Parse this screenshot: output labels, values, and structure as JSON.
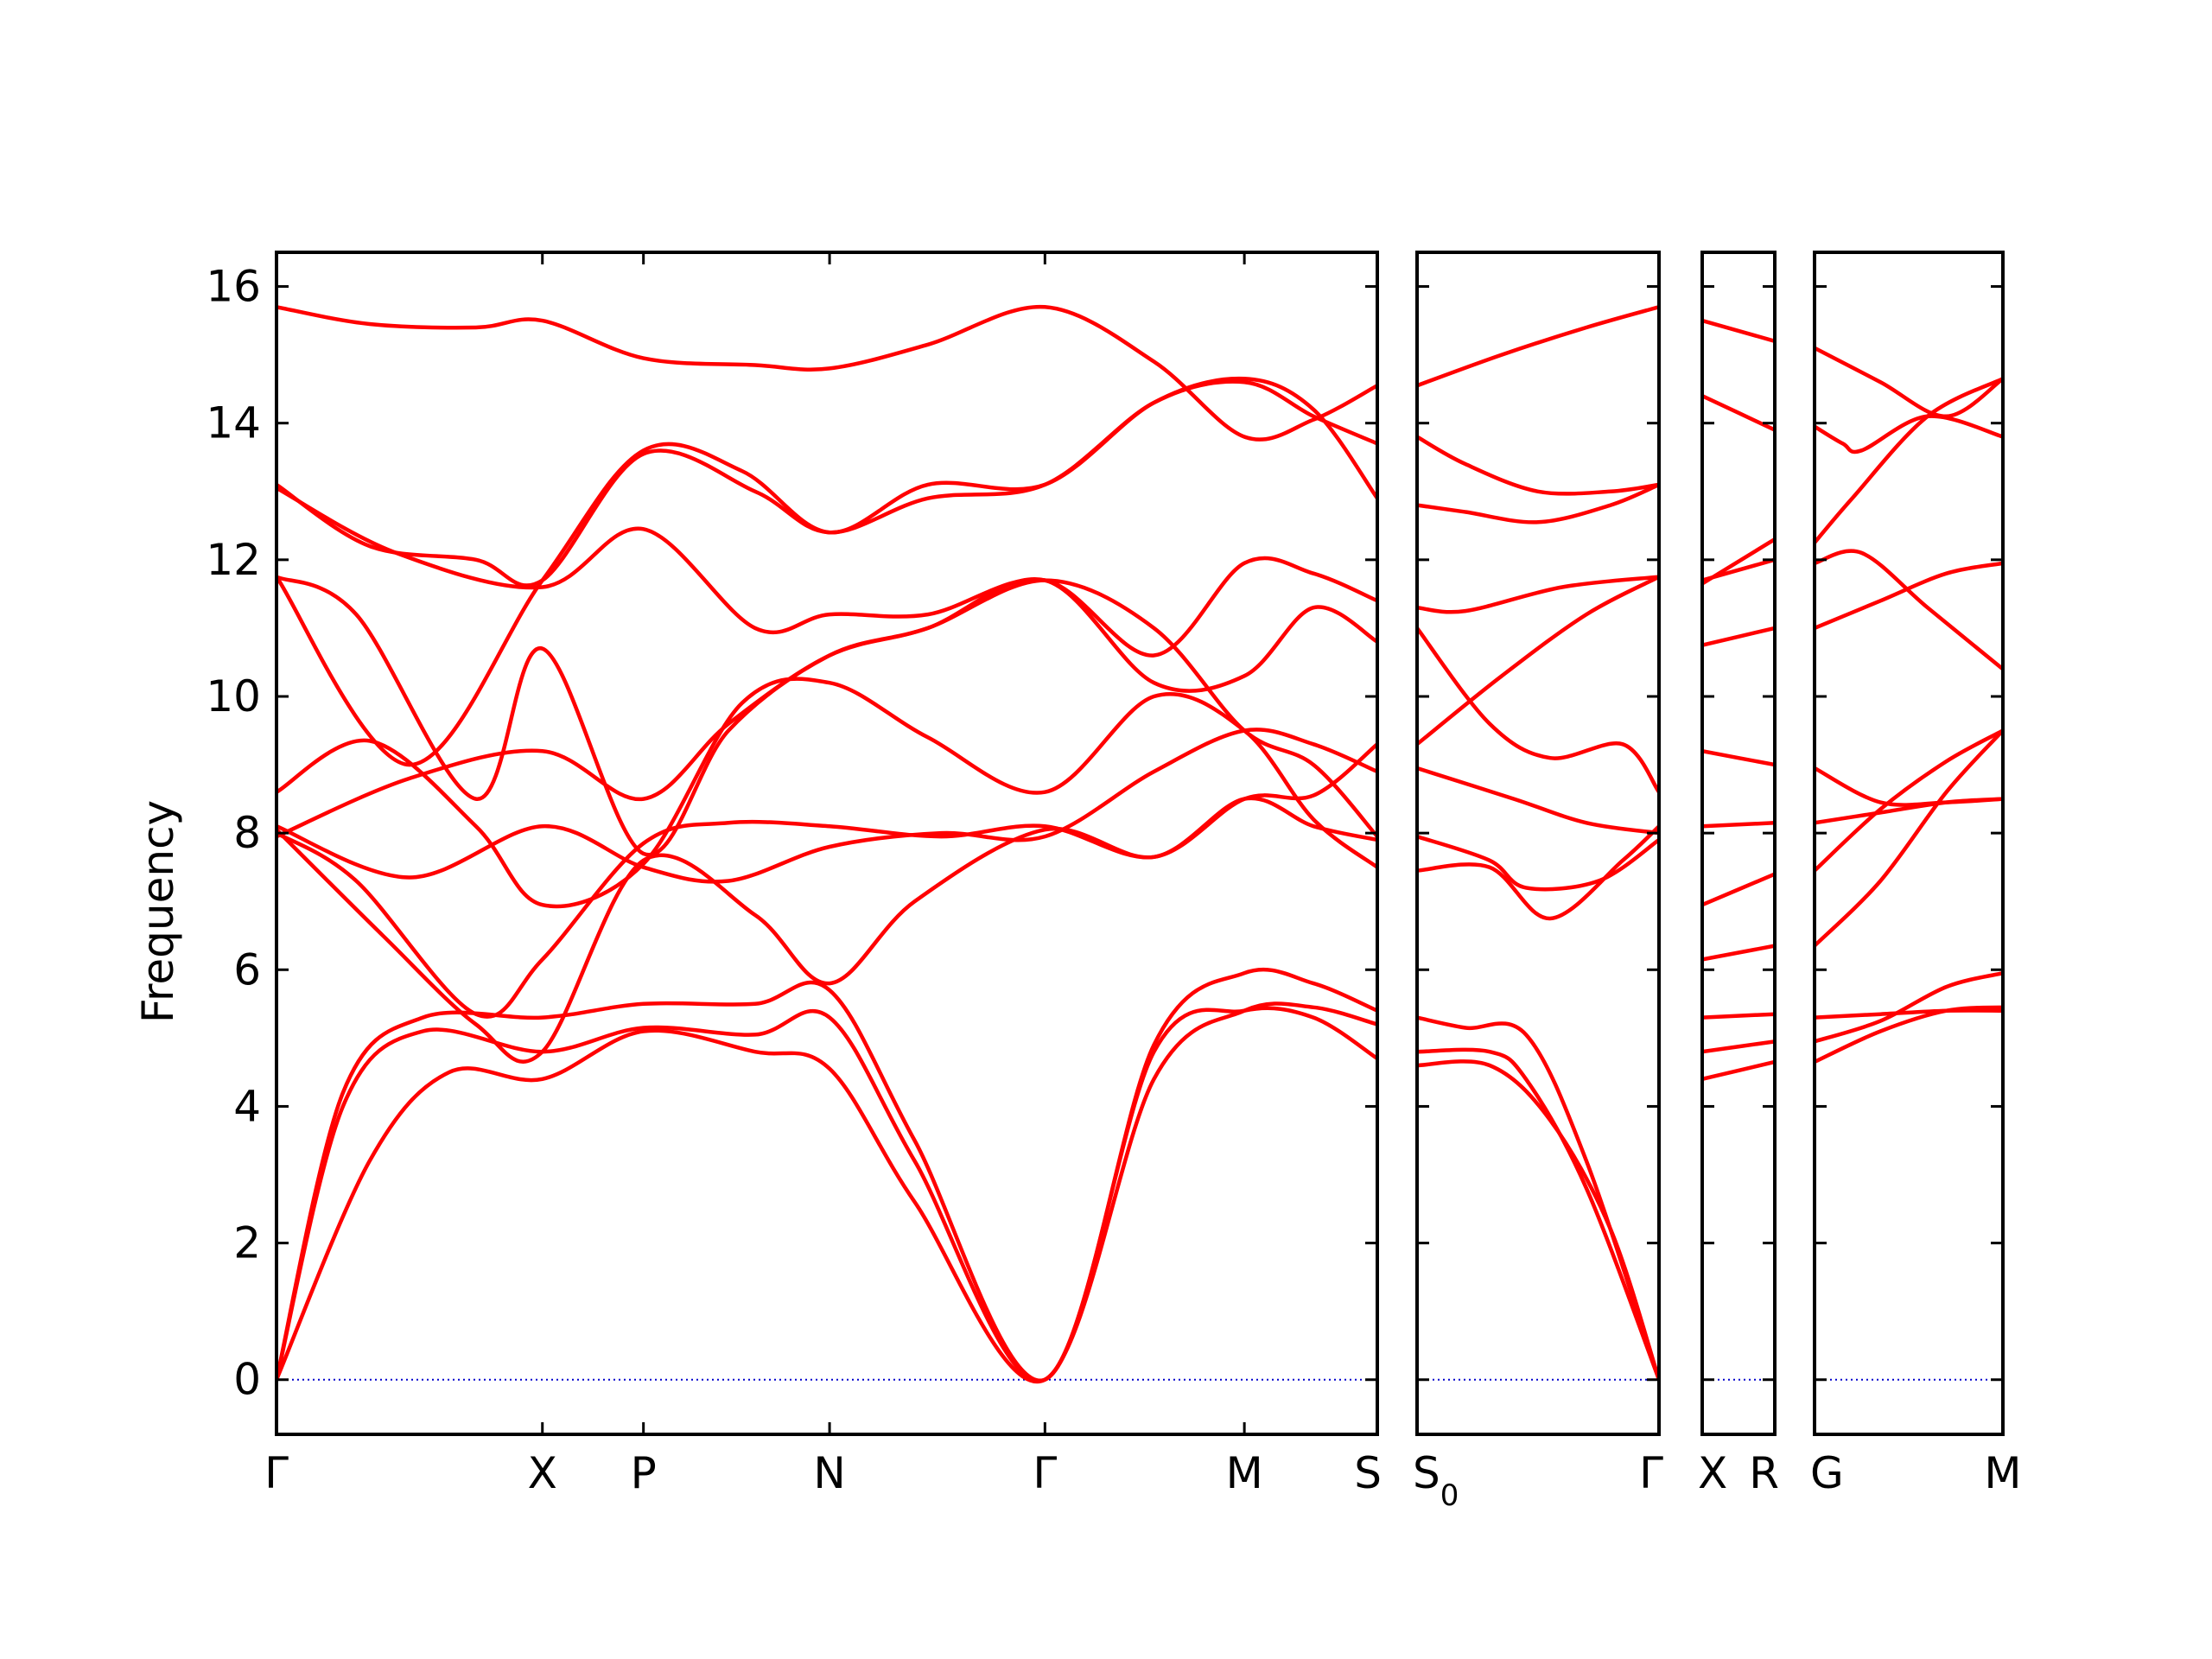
{
  "chart_data": {
    "type": "line",
    "title": "",
    "ylabel": "Frequency",
    "ylim": [
      -0.8,
      16.5
    ],
    "yticks": [
      0,
      2,
      4,
      6,
      8,
      10,
      12,
      14,
      16
    ],
    "colors": {
      "band": "#ff0000",
      "zero_line": "#0000cc",
      "frame": "#000000"
    },
    "grid": false,
    "segments": [
      {
        "labels": [
          "Γ",
          "X",
          "P",
          "N",
          "Γ",
          "M",
          "S"
        ],
        "label_positions": [
          0,
          1,
          1.38,
          2.08,
          2.89,
          3.64,
          4.14
        ],
        "x_range": [
          0,
          4.14
        ],
        "bands": [
          {
            "x": [
              0,
              0.35,
              0.65,
              1,
              1.38,
              1.8,
              2.08,
              2.4,
              2.89,
              3.3,
              3.64,
              3.9,
              4.14
            ],
            "y": [
              0,
              3.2,
              4.5,
              4.4,
              5.1,
              4.8,
              4.55,
              2.6,
              0,
              4.4,
              5.4,
              5.45,
              5.2
            ]
          },
          {
            "x": [
              0,
              0.25,
              0.55,
              1,
              1.38,
              1.8,
              2.08,
              2.4,
              2.89,
              3.3,
              3.64,
              3.9,
              4.14
            ],
            "y": [
              0,
              4.0,
              5.1,
              4.8,
              5.15,
              5.05,
              5.3,
              3.2,
              0,
              4.8,
              5.4,
              5.3,
              4.7
            ]
          },
          {
            "x": [
              0,
              0.25,
              0.55,
              1,
              1.38,
              1.8,
              2.08,
              2.4,
              2.89,
              3.3,
              3.64,
              3.9,
              4.14
            ],
            "y": [
              0,
              4.2,
              5.3,
              5.3,
              5.5,
              5.5,
              5.7,
              3.5,
              0,
              4.9,
              5.95,
              5.8,
              5.4
            ]
          },
          {
            "x": [
              0,
              0.4,
              0.75,
              1,
              1.38,
              1.8,
              2.08,
              2.4,
              2.89,
              3.3,
              3.64,
              3.9,
              4.14
            ],
            "y": [
              8.05,
              6.5,
              5.2,
              4.8,
              7.6,
              6.8,
              5.8,
              7.0,
              8.05,
              7.65,
              8.5,
              8.1,
              7.9
            ]
          },
          {
            "x": [
              0,
              0.3,
              0.75,
              1,
              1.38,
              1.7,
              2.08,
              2.5,
              2.89,
              3.3,
              3.64,
              3.9,
              4.14
            ],
            "y": [
              8.0,
              7.3,
              5.35,
              6.15,
              7.85,
              8.15,
              8.1,
              7.95,
              8.1,
              7.65,
              8.5,
              8.55,
              9.3
            ]
          },
          {
            "x": [
              0,
              0.5,
              1,
              1.38,
              1.7,
              2.08,
              2.5,
              2.89,
              3.3,
              3.64,
              3.9,
              4.14
            ],
            "y": [
              8.1,
              7.35,
              8.1,
              7.5,
              7.3,
              7.8,
              8.0,
              7.95,
              8.9,
              9.5,
              9.3,
              8.9
            ]
          },
          {
            "x": [
              0,
              0.35,
              0.75,
              1,
              1.38,
              1.75,
              2.08,
              2.45,
              2.89,
              3.3,
              3.64,
              3.9,
              4.14
            ],
            "y": [
              8.6,
              9.35,
              8.1,
              6.95,
              7.55,
              9.9,
              10.2,
              9.4,
              8.6,
              10.0,
              9.5,
              8.2,
              7.5
            ]
          },
          {
            "x": [
              0,
              0.5,
              1,
              1.38,
              1.7,
              2.08,
              2.45,
              2.89,
              3.3,
              3.64,
              3.9,
              4.14
            ],
            "y": [
              7.95,
              8.8,
              9.2,
              8.5,
              9.6,
              10.6,
              11.0,
              11.7,
              11.0,
              9.5,
              9.0,
              7.95
            ]
          },
          {
            "x": [
              0,
              0.5,
              1,
              1.38,
              1.75,
              2.08,
              2.45,
              2.89,
              3.3,
              3.64,
              3.9,
              4.14
            ],
            "y": [
              11.75,
              9.0,
              11.7,
              13.6,
              13.3,
              12.4,
              13.1,
              13.1,
              14.3,
              14.65,
              14.2,
              12.9
            ]
          },
          {
            "x": [
              0,
              0.3,
              0.75,
              1,
              1.38,
              1.7,
              2.08,
              2.45,
              2.89,
              3.3,
              3.64,
              3.9,
              4.14
            ],
            "y": [
              11.75,
              11.2,
              8.5,
              10.7,
              7.7,
              9.5,
              10.6,
              11.0,
              11.7,
              10.2,
              10.3,
              11.3,
              10.8
            ]
          },
          {
            "x": [
              0,
              0.45,
              1,
              1.38,
              1.8,
              2.08,
              2.45,
              2.89,
              3.3,
              3.64,
              3.9,
              4.14
            ],
            "y": [
              13.05,
              12.1,
              11.6,
              12.45,
              11.0,
              11.2,
              11.2,
              11.7,
              10.6,
              11.95,
              11.8,
              11.4
            ]
          },
          {
            "x": [
              0,
              0.35,
              0.75,
              1,
              1.38,
              1.8,
              2.08,
              2.45,
              2.89,
              3.3,
              3.64,
              3.9,
              4.14
            ],
            "y": [
              13.1,
              12.2,
              12.0,
              11.7,
              13.55,
              13.0,
              12.4,
              12.9,
              13.1,
              14.3,
              14.6,
              14.1,
              13.7
            ]
          },
          {
            "x": [
              0,
              0.35,
              0.75,
              1,
              1.38,
              1.8,
              2.08,
              2.45,
              2.89,
              3.3,
              3.64,
              3.9,
              4.14
            ],
            "y": [
              15.7,
              15.45,
              15.4,
              15.5,
              14.95,
              14.85,
              14.8,
              15.15,
              15.7,
              14.9,
              13.8,
              14.05,
              14.55
            ]
          }
        ]
      },
      {
        "labels": [
          "S₀",
          "Γ"
        ],
        "label_positions": [
          0,
          1
        ],
        "x_range": [
          0,
          1
        ],
        "bands": [
          {
            "x": [
              0,
              0.3,
              0.55,
              0.8,
              1
            ],
            "y": [
              4.6,
              4.6,
              3.8,
              2.2,
              0
            ]
          },
          {
            "x": [
              0,
              0.3,
              0.45,
              0.7,
              1
            ],
            "y": [
              4.8,
              4.8,
              4.4,
              2.8,
              0
            ]
          },
          {
            "x": [
              0,
              0.2,
              0.45,
              0.7,
              1
            ],
            "y": [
              5.3,
              5.15,
              5.05,
              3.2,
              0
            ]
          },
          {
            "x": [
              0,
              0.3,
              0.55,
              0.85,
              1
            ],
            "y": [
              7.45,
              7.5,
              6.75,
              7.6,
              8.1
            ]
          },
          {
            "x": [
              0,
              0.3,
              0.45,
              0.75,
              1
            ],
            "y": [
              7.95,
              7.6,
              7.2,
              7.3,
              7.9
            ]
          },
          {
            "x": [
              0,
              0.4,
              0.7,
              1
            ],
            "y": [
              8.95,
              8.5,
              8.15,
              8.0
            ]
          },
          {
            "x": [
              0,
              0.3,
              0.55,
              0.85,
              1
            ],
            "y": [
              11.0,
              9.6,
              9.1,
              9.3,
              8.6
            ]
          },
          {
            "x": [
              0,
              0.35,
              0.7,
              1
            ],
            "y": [
              9.3,
              10.3,
              11.2,
              11.75
            ]
          },
          {
            "x": [
              0,
              0.2,
              0.6,
              1
            ],
            "y": [
              11.3,
              11.25,
              11.6,
              11.75
            ]
          },
          {
            "x": [
              0,
              0.2,
              0.5,
              0.8,
              1
            ],
            "y": [
              12.8,
              12.7,
              12.55,
              12.8,
              13.1
            ]
          },
          {
            "x": [
              0,
              0.2,
              0.5,
              0.8,
              1
            ],
            "y": [
              13.8,
              13.4,
              13.0,
              13.0,
              13.1
            ]
          },
          {
            "x": [
              0,
              0.35,
              0.7,
              1
            ],
            "y": [
              14.55,
              15.0,
              15.4,
              15.7
            ]
          }
        ]
      },
      {
        "labels": [
          "X",
          "R"
        ],
        "label_positions": [
          0,
          1
        ],
        "x_range": [
          0,
          1
        ],
        "bands": [
          {
            "x": [
              0,
              1
            ],
            "y": [
              4.4,
              4.65
            ]
          },
          {
            "x": [
              0,
              1
            ],
            "y": [
              4.8,
              4.95
            ]
          },
          {
            "x": [
              0,
              1
            ],
            "y": [
              5.3,
              5.35
            ]
          },
          {
            "x": [
              0,
              1
            ],
            "y": [
              6.15,
              6.35
            ]
          },
          {
            "x": [
              0,
              1
            ],
            "y": [
              6.95,
              7.4
            ]
          },
          {
            "x": [
              0,
              1
            ],
            "y": [
              8.1,
              8.15
            ]
          },
          {
            "x": [
              0,
              1
            ],
            "y": [
              9.2,
              9.0
            ]
          },
          {
            "x": [
              0,
              1
            ],
            "y": [
              10.75,
              11.0
            ]
          },
          {
            "x": [
              0,
              1
            ],
            "y": [
              11.65,
              12.3
            ]
          },
          {
            "x": [
              0,
              1
            ],
            "y": [
              11.7,
              12.0
            ]
          },
          {
            "x": [
              0,
              1
            ],
            "y": [
              14.4,
              13.9
            ]
          },
          {
            "x": [
              0,
              1
            ],
            "y": [
              15.5,
              15.2
            ]
          }
        ]
      },
      {
        "labels": [
          "G",
          "M"
        ],
        "label_positions": [
          0,
          1
        ],
        "x_range": [
          0,
          1
        ],
        "bands": [
          {
            "x": [
              0,
              0.35,
              0.7,
              1
            ],
            "y": [
              4.65,
              5.1,
              5.4,
              5.45
            ]
          },
          {
            "x": [
              0,
              0.35,
              0.7,
              1
            ],
            "y": [
              4.95,
              5.25,
              5.75,
              5.95
            ]
          },
          {
            "x": [
              0,
              0.35,
              0.7,
              1
            ],
            "y": [
              5.3,
              5.35,
              5.4,
              5.4
            ]
          },
          {
            "x": [
              0,
              0.35,
              0.7,
              1
            ],
            "y": [
              6.35,
              7.3,
              8.6,
              9.5
            ]
          },
          {
            "x": [
              0,
              0.35,
              0.7,
              1
            ],
            "y": [
              7.45,
              8.35,
              9.05,
              9.5
            ]
          },
          {
            "x": [
              0,
              0.35,
              0.7,
              1
            ],
            "y": [
              8.15,
              8.3,
              8.45,
              8.5
            ]
          },
          {
            "x": [
              0,
              0.35,
              0.7,
              1
            ],
            "y": [
              8.95,
              8.45,
              8.45,
              8.5
            ]
          },
          {
            "x": [
              0,
              0.25,
              0.6,
              1
            ],
            "y": [
              11.95,
              12.1,
              11.3,
              10.4
            ]
          },
          {
            "x": [
              0,
              0.35,
              0.7,
              1
            ],
            "y": [
              11.0,
              11.4,
              11.8,
              11.95
            ]
          },
          {
            "x": [
              0,
              0.2,
              0.6,
              1
            ],
            "y": [
              12.25,
              12.9,
              14.1,
              14.65
            ]
          },
          {
            "x": [
              0,
              0.15,
              0.25,
              0.6,
              1
            ],
            "y": [
              13.95,
              13.7,
              13.6,
              14.1,
              13.8
            ]
          },
          {
            "x": [
              0,
              0.35,
              0.7,
              1
            ],
            "y": [
              15.1,
              14.6,
              14.1,
              14.65
            ]
          }
        ]
      }
    ]
  }
}
